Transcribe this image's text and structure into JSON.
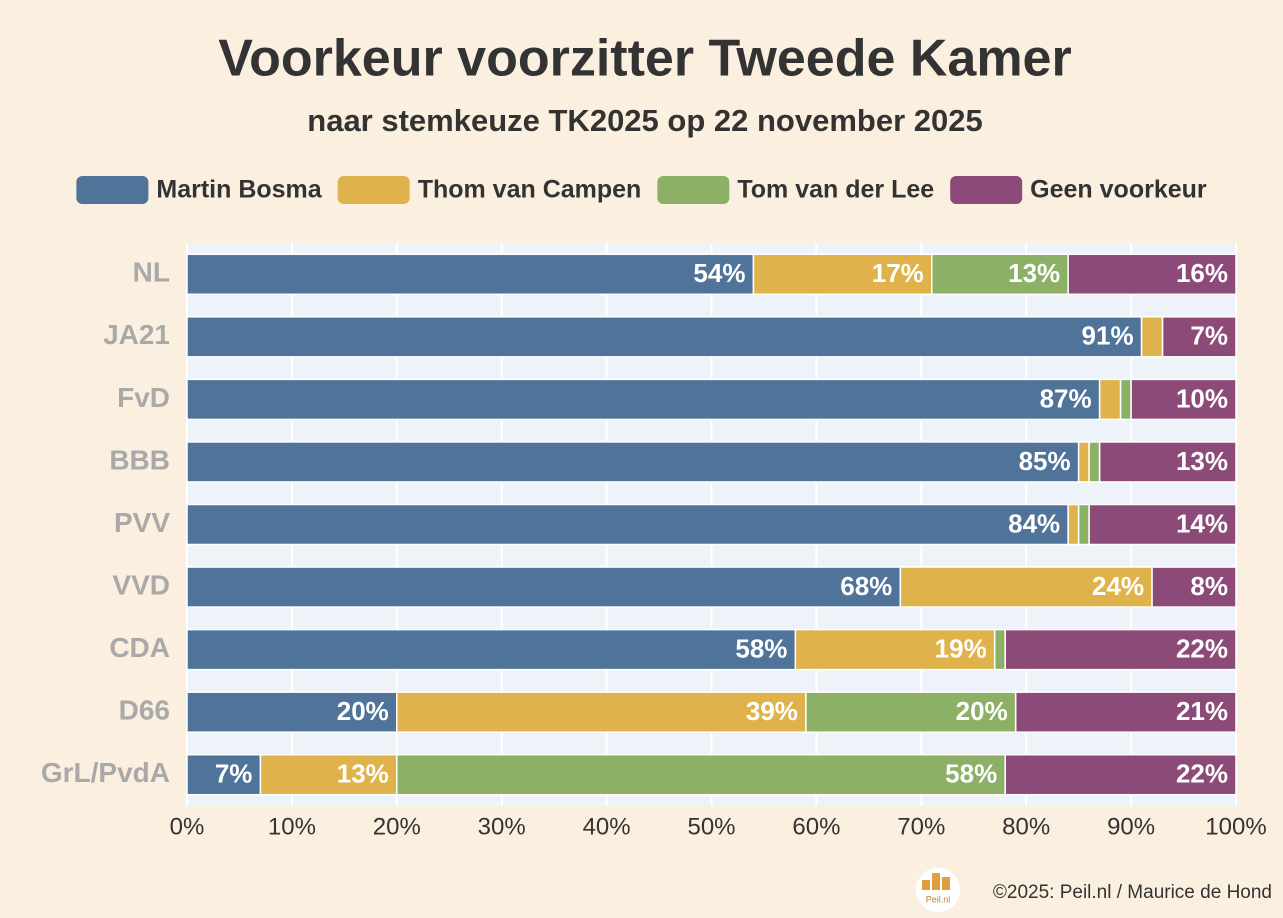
{
  "chart_data": {
    "type": "stacked-bar-horizontal",
    "title": "Voorkeur voorzitter Tweede Kamer",
    "subtitle": "naar stemkeuze TK2025 op 22 november 2025",
    "categories": [
      "NL",
      "JA21",
      "FvD",
      "BBB",
      "PVV",
      "VVD",
      "CDA",
      "D66",
      "GrL/PvdA"
    ],
    "series": [
      {
        "name": "Martin Bosma",
        "color": "#4f7399",
        "values": [
          54,
          91,
          87,
          85,
          84,
          68,
          58,
          20,
          7
        ],
        "value_labels": [
          "54%",
          "91%",
          "87%",
          "85%",
          "84%",
          "68%",
          "58%",
          "20%",
          "7%"
        ]
      },
      {
        "name": "Thom van Campen",
        "color": "#e0b24c",
        "values": [
          17,
          2,
          2,
          1,
          1,
          24,
          19,
          39,
          13
        ],
        "value_labels": [
          "17%",
          null,
          null,
          null,
          null,
          "24%",
          "19%",
          "39%",
          "13%"
        ]
      },
      {
        "name": "Tom van der Lee",
        "color": "#8bb066",
        "values": [
          13,
          0,
          1,
          1,
          1,
          0,
          1,
          20,
          58
        ],
        "value_labels": [
          "13%",
          null,
          null,
          null,
          null,
          null,
          null,
          "20%",
          "58%"
        ]
      },
      {
        "name": "Geen voorkeur",
        "color": "#8c4a78",
        "values": [
          16,
          7,
          10,
          13,
          14,
          8,
          22,
          21,
          22
        ],
        "value_labels": [
          "16%",
          "7%",
          "10%",
          "13%",
          "14%",
          "8%",
          "22%",
          "21%",
          "22%"
        ]
      }
    ],
    "xlim": [
      0,
      100
    ],
    "xticks": [
      {
        "value": 0,
        "label": "0%"
      },
      {
        "value": 10,
        "label": "10%"
      },
      {
        "value": 20,
        "label": "20%"
      },
      {
        "value": 30,
        "label": "30%"
      },
      {
        "value": 40,
        "label": "40%"
      },
      {
        "value": 50,
        "label": "50%"
      },
      {
        "value": 60,
        "label": "60%"
      },
      {
        "value": 70,
        "label": "70%"
      },
      {
        "value": 80,
        "label": "80%"
      },
      {
        "value": 90,
        "label": "90%"
      },
      {
        "value": 100,
        "label": "100%"
      }
    ],
    "grid": true,
    "legend": "top",
    "footer": "©2025: Peil.nl / Maurice de Hond",
    "logo": "Peil.nl"
  }
}
